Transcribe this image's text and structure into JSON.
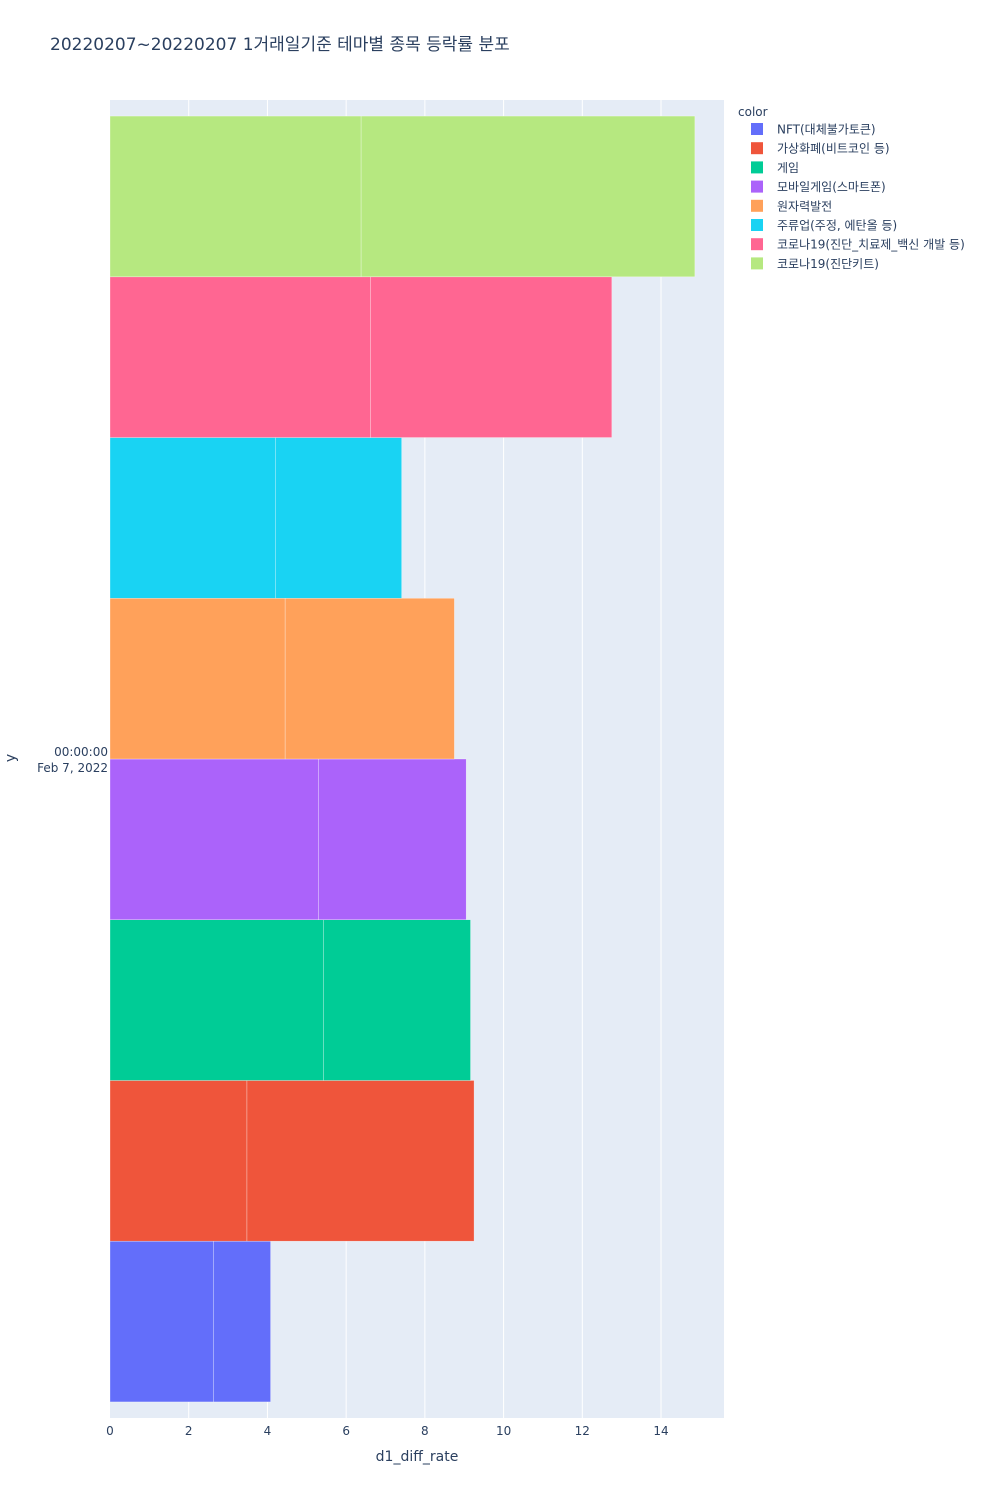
{
  "chart_data": {
    "type": "bar",
    "orientation": "horizontal",
    "barmode": "stack",
    "title": "20220207~20220207 1거래일기준 테마별 종목 등락률 분포",
    "xlabel": "d1_diff_rate",
    "ylabel": "y",
    "xlim": [
      0,
      15.6
    ],
    "x_ticks": [
      0,
      2,
      4,
      6,
      8,
      10,
      12,
      14
    ],
    "y_tick_label": {
      "time": "00:00:00",
      "date": "Feb 7, 2022"
    },
    "grid": true,
    "legend_title": "color",
    "legend_position": "top-right",
    "series": [
      {
        "name": "NFT(대체불가토큰)",
        "color": "#636efa",
        "segments": [
          2.63,
          1.45
        ]
      },
      {
        "name": "가상화폐(비트코인 등)",
        "color": "#EF553B",
        "segments": [
          3.48,
          5.77
        ]
      },
      {
        "name": "게임",
        "color": "#00cc96",
        "segments": [
          5.42,
          3.74
        ]
      },
      {
        "name": "모바일게임(스마트폰)",
        "color": "#ab63fa",
        "segments": [
          5.3,
          3.75
        ]
      },
      {
        "name": "원자력발전",
        "color": "#FFA15A",
        "segments": [
          4.45,
          4.3
        ]
      },
      {
        "name": "주류업(주정, 에탄올 등)",
        "color": "#19d3f3",
        "segments": [
          4.2,
          3.21
        ]
      },
      {
        "name": "코로나19(진단_치료제_백신 개발 등)",
        "color": "#FF6692",
        "segments": [
          6.62,
          6.13
        ]
      },
      {
        "name": "코로나19(진단키트)",
        "color": "#B6E880",
        "segments": [
          6.38,
          8.48
        ]
      }
    ]
  }
}
